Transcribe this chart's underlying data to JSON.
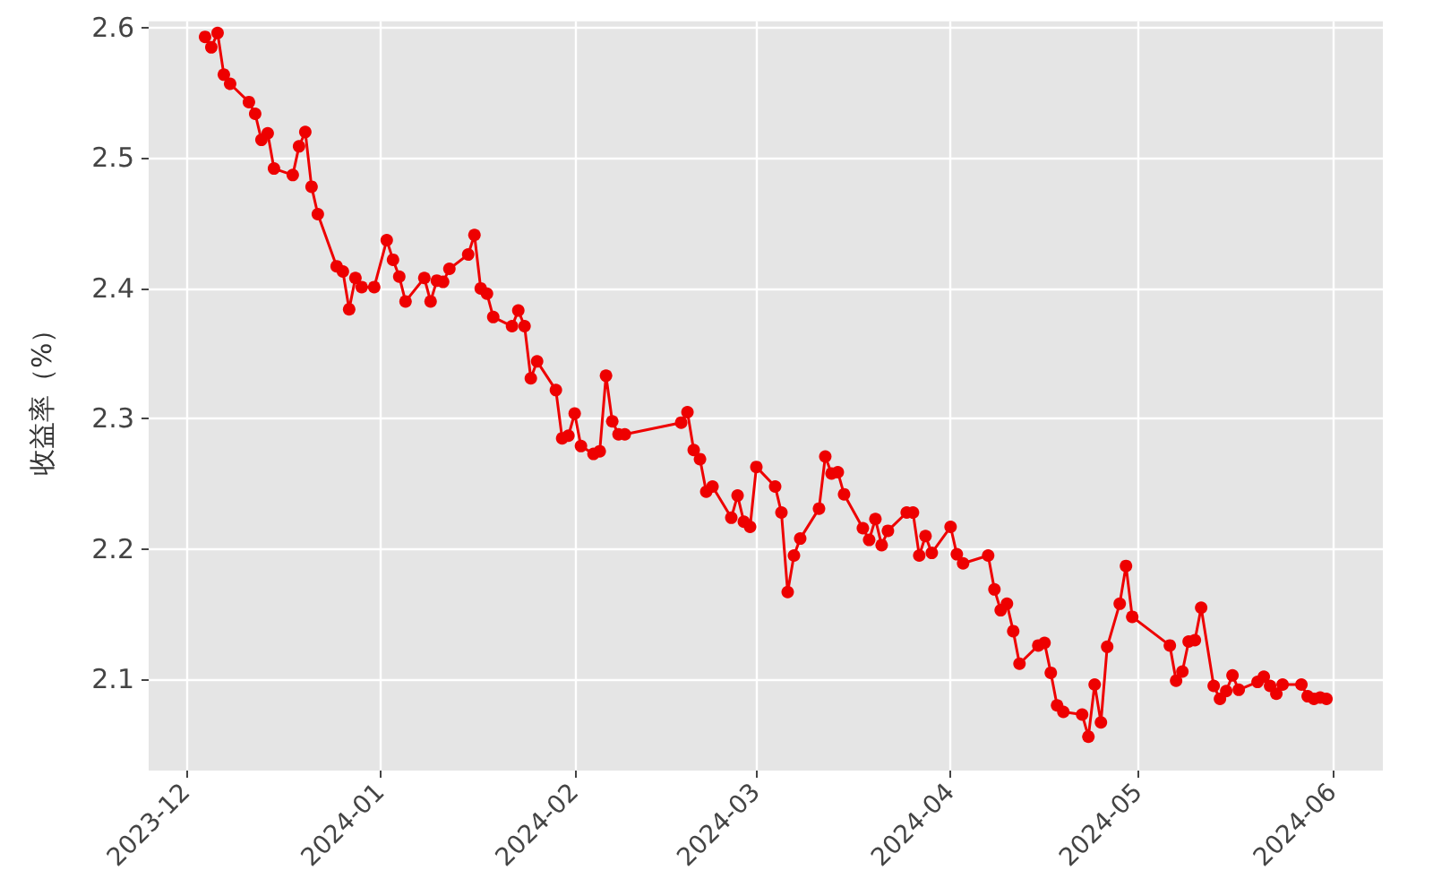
{
  "chart_data": {
    "type": "line",
    "ylabel": "收益率（%）",
    "x": [
      "2023-12-04",
      "2023-12-05",
      "2023-12-06",
      "2023-12-07",
      "2023-12-08",
      "2023-12-11",
      "2023-12-12",
      "2023-12-13",
      "2023-12-14",
      "2023-12-15",
      "2023-12-18",
      "2023-12-19",
      "2023-12-20",
      "2023-12-21",
      "2023-12-22",
      "2023-12-25",
      "2023-12-26",
      "2023-12-27",
      "2023-12-28",
      "2023-12-29",
      "2023-12-31",
      "2024-01-02",
      "2024-01-03",
      "2024-01-04",
      "2024-01-05",
      "2024-01-08",
      "2024-01-09",
      "2024-01-10",
      "2024-01-11",
      "2024-01-12",
      "2024-01-15",
      "2024-01-16",
      "2024-01-17",
      "2024-01-18",
      "2024-01-19",
      "2024-01-22",
      "2024-01-23",
      "2024-01-24",
      "2024-01-25",
      "2024-01-26",
      "2024-01-29",
      "2024-01-30",
      "2024-01-31",
      "2024-02-01",
      "2024-02-02",
      "2024-02-04",
      "2024-02-05",
      "2024-02-06",
      "2024-02-07",
      "2024-02-08",
      "2024-02-09",
      "2024-02-18",
      "2024-02-19",
      "2024-02-20",
      "2024-02-21",
      "2024-02-22",
      "2024-02-23",
      "2024-02-26",
      "2024-02-27",
      "2024-02-28",
      "2024-02-29",
      "2024-03-01",
      "2024-03-04",
      "2024-03-05",
      "2024-03-06",
      "2024-03-07",
      "2024-03-08",
      "2024-03-11",
      "2024-03-12",
      "2024-03-13",
      "2024-03-14",
      "2024-03-15",
      "2024-03-18",
      "2024-03-19",
      "2024-03-20",
      "2024-03-21",
      "2024-03-22",
      "2024-03-25",
      "2024-03-26",
      "2024-03-27",
      "2024-03-28",
      "2024-03-29",
      "2024-04-01",
      "2024-04-02",
      "2024-04-03",
      "2024-04-07",
      "2024-04-08",
      "2024-04-09",
      "2024-04-10",
      "2024-04-11",
      "2024-04-12",
      "2024-04-15",
      "2024-04-16",
      "2024-04-17",
      "2024-04-18",
      "2024-04-19",
      "2024-04-22",
      "2024-04-23",
      "2024-04-24",
      "2024-04-25",
      "2024-04-26",
      "2024-04-28",
      "2024-04-29",
      "2024-04-30",
      "2024-05-06",
      "2024-05-07",
      "2024-05-08",
      "2024-05-09",
      "2024-05-10",
      "2024-05-11",
      "2024-05-13",
      "2024-05-14",
      "2024-05-15",
      "2024-05-16",
      "2024-05-17",
      "2024-05-20",
      "2024-05-21",
      "2024-05-22",
      "2024-05-23",
      "2024-05-24",
      "2024-05-27",
      "2024-05-28",
      "2024-05-29",
      "2024-05-30",
      "2024-05-31"
    ],
    "series": [
      {
        "color": "#ee0000",
        "values": [
          2.593,
          2.585,
          2.596,
          2.564,
          2.557,
          2.543,
          2.534,
          2.514,
          2.519,
          2.492,
          2.487,
          2.509,
          2.52,
          2.478,
          2.457,
          2.417,
          2.413,
          2.384,
          2.408,
          2.401,
          2.401,
          2.437,
          2.422,
          2.409,
          2.39,
          2.408,
          2.39,
          2.406,
          2.405,
          2.415,
          2.426,
          2.441,
          2.4,
          2.396,
          2.378,
          2.371,
          2.383,
          2.371,
          2.331,
          2.344,
          2.322,
          2.285,
          2.287,
          2.304,
          2.279,
          2.273,
          2.275,
          2.333,
          2.298,
          2.288,
          2.288,
          2.297,
          2.305,
          2.276,
          2.269,
          2.244,
          2.248,
          2.224,
          2.241,
          2.221,
          2.217,
          2.263,
          2.248,
          2.228,
          2.167,
          2.195,
          2.208,
          2.231,
          2.271,
          2.258,
          2.259,
          2.242,
          2.216,
          2.207,
          2.223,
          2.203,
          2.214,
          2.228,
          2.228,
          2.195,
          2.21,
          2.197,
          2.217,
          2.196,
          2.189,
          2.195,
          2.169,
          2.153,
          2.158,
          2.137,
          2.112,
          2.126,
          2.128,
          2.105,
          2.08,
          2.075,
          2.073,
          2.056,
          2.096,
          2.067,
          2.125,
          2.158,
          2.187,
          2.148,
          2.126,
          2.099,
          2.106,
          2.129,
          2.13,
          2.155,
          2.095,
          2.085,
          2.091,
          2.103,
          2.092,
          2.098,
          2.102,
          2.095,
          2.089,
          2.096,
          2.096,
          2.087,
          2.085,
          2.086,
          2.085
        ]
      }
    ],
    "xlim": [
      "2023-11-25",
      "2024-06-09"
    ],
    "xticks": [
      {
        "value": "2023-12-01",
        "label": "2023-12"
      },
      {
        "value": "2024-01-01",
        "label": "2024-01"
      },
      {
        "value": "2024-02-01",
        "label": "2024-02"
      },
      {
        "value": "2024-03-01",
        "label": "2024-03"
      },
      {
        "value": "2024-04-01",
        "label": "2024-04"
      },
      {
        "value": "2024-05-01",
        "label": "2024-05"
      },
      {
        "value": "2024-06-01",
        "label": "2024-06"
      }
    ],
    "ylim": [
      2.03,
      2.605
    ],
    "yticks": [
      2.1,
      2.2,
      2.3,
      2.4,
      2.5,
      2.6
    ],
    "grid": true,
    "marker": "circle",
    "line_style": "solid"
  }
}
